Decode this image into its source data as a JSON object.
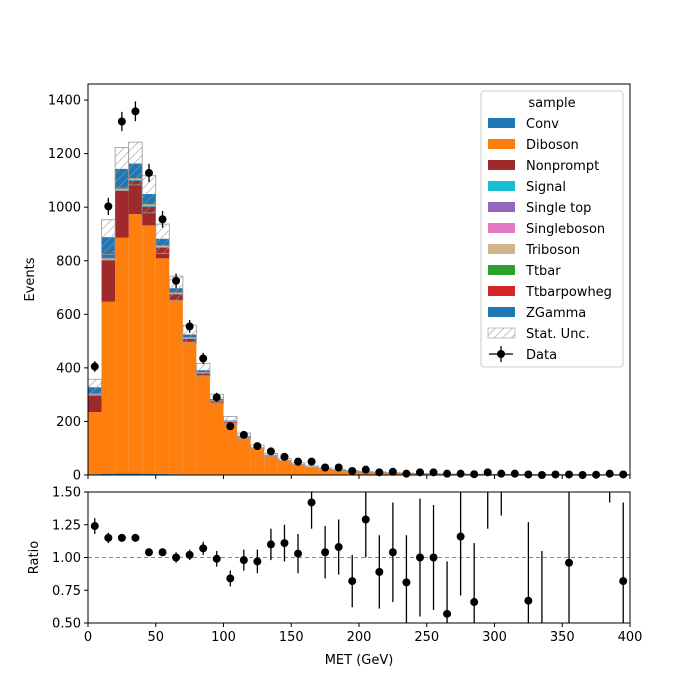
{
  "chart_data": [
    {
      "type": "bar",
      "stacked": true,
      "ylabel": "Events",
      "xlim": [
        0,
        400
      ],
      "ylim": [
        0,
        1460
      ],
      "yticks": [
        0,
        200,
        400,
        600,
        800,
        1000,
        1200,
        1400
      ],
      "bin_edges": [
        0,
        10,
        20,
        30,
        40,
        50,
        60,
        70,
        80,
        90,
        100,
        110,
        120,
        130,
        140,
        150,
        160,
        170,
        180,
        190,
        200,
        210,
        220,
        230,
        240,
        250,
        260,
        270,
        280,
        290,
        300,
        310,
        320,
        330,
        340,
        350,
        360,
        370,
        380,
        390,
        400
      ],
      "legend": {
        "title": "sample",
        "placement": "top-right",
        "entries": [
          "Conv",
          "Diboson",
          "Nonprompt",
          "Signal",
          "Single top",
          "Singleboson",
          "Triboson",
          "Ttbar",
          "Ttbarpowheg",
          "ZGamma",
          "Stat. Unc.",
          "Data"
        ]
      },
      "series": [
        {
          "name": "Conv",
          "color": "#1f77b4",
          "values": [
            3,
            5,
            6,
            6,
            5,
            4,
            3,
            2,
            2,
            1,
            1,
            1,
            0.5,
            0.5,
            0.3,
            0.3,
            0.2,
            0.2,
            0.1,
            0.1,
            0.1,
            0.1,
            0.1,
            0,
            0,
            0,
            0,
            0,
            0,
            0,
            0,
            0,
            0,
            0,
            0,
            0,
            0,
            0,
            0,
            0
          ]
        },
        {
          "name": "Diboson",
          "color": "#ff7f0e",
          "values": [
            232,
            642,
            880,
            968,
            927,
            805,
            650,
            495,
            370,
            270,
            195,
            140,
            100,
            72,
            54,
            40,
            30,
            23,
            18,
            14,
            11,
            9,
            7,
            6,
            5,
            4,
            3,
            3,
            2,
            2,
            2,
            1.5,
            1.2,
            1,
            1,
            0.8,
            0.7,
            0.5,
            0.5,
            0.4
          ]
        },
        {
          "name": "Nonprompt",
          "color": "#9e2a2b",
          "values": [
            65,
            155,
            175,
            125,
            70,
            40,
            22,
            12,
            7,
            4,
            2,
            1,
            0.5,
            0.3,
            0.2,
            0.1,
            0.1,
            0,
            0,
            0,
            0,
            0,
            0,
            0,
            0,
            0,
            0,
            0,
            0,
            0,
            0,
            0,
            0,
            0,
            0,
            0,
            0,
            0,
            0,
            0
          ]
        },
        {
          "name": "Signal",
          "color": "#17becf",
          "values": [
            1,
            2,
            3,
            3,
            3,
            2,
            2,
            1,
            1,
            1,
            0.5,
            0.5,
            0.3,
            0.2,
            0.2,
            0.1,
            0.1,
            0.1,
            0.1,
            0,
            0,
            0,
            0,
            0,
            0,
            0,
            0,
            0,
            0,
            0,
            0,
            0,
            0,
            0,
            0,
            0,
            0,
            0,
            0,
            0
          ]
        },
        {
          "name": "Single top",
          "color": "#9467bd",
          "values": [
            0.5,
            1,
            1,
            1,
            1,
            1,
            0.5,
            0.5,
            0.5,
            0.3,
            0.2,
            0.2,
            0.1,
            0.1,
            0.1,
            0.1,
            0,
            0,
            0,
            0,
            0,
            0,
            0,
            0,
            0,
            0,
            0,
            0,
            0,
            0,
            0,
            0,
            0,
            0,
            0,
            0,
            0,
            0,
            0,
            0
          ]
        },
        {
          "name": "Singleboson",
          "color": "#e377c2",
          "values": [
            0.5,
            1,
            1,
            1,
            1,
            0.5,
            0.5,
            0.5,
            0.3,
            0.2,
            0.1,
            0.1,
            0.1,
            0,
            0,
            0,
            0,
            0,
            0,
            0,
            0,
            0,
            0,
            0,
            0,
            0,
            0,
            0,
            0,
            0,
            0,
            0,
            0,
            0,
            0,
            0,
            0,
            0,
            0,
            0
          ]
        },
        {
          "name": "Triboson",
          "color": "#d2b48c",
          "values": [
            1,
            2,
            3,
            3,
            3,
            3,
            2,
            2,
            2,
            1,
            1,
            1,
            0.5,
            0.5,
            0.5,
            0.3,
            0.3,
            0.2,
            0.2,
            0.1,
            0.1,
            0.1,
            0.1,
            0.1,
            0,
            0,
            0,
            0,
            0,
            0,
            0,
            0,
            0,
            0,
            0,
            0,
            0,
            0,
            0,
            0
          ]
        },
        {
          "name": "Ttbar",
          "color": "#2ca02c",
          "values": [
            0.5,
            1,
            1,
            1,
            1,
            0.5,
            0.5,
            0.5,
            0.3,
            0.2,
            0.1,
            0.1,
            0,
            0,
            0,
            0,
            0,
            0,
            0,
            0,
            0,
            0,
            0,
            0,
            0,
            0,
            0,
            0,
            0,
            0,
            0,
            0,
            0,
            0,
            0,
            0,
            0,
            0,
            0,
            0
          ]
        },
        {
          "name": "Ttbarpowheg",
          "color": "#d62728",
          "values": [
            1,
            2,
            3,
            3,
            3,
            2,
            2,
            1,
            1,
            1,
            0.5,
            0.5,
            0.3,
            0.2,
            0.2,
            0.1,
            0.1,
            0,
            0,
            0,
            0,
            0,
            0,
            0,
            0,
            0,
            0,
            0,
            0,
            0,
            0,
            0,
            0,
            0,
            0,
            0,
            0,
            0,
            0,
            0
          ]
        },
        {
          "name": "ZGamma",
          "color": "#1f77b4",
          "values": [
            23,
            77,
            70,
            52,
            35,
            24,
            15,
            10,
            7,
            5,
            3,
            2,
            1.5,
            1,
            0.8,
            0.5,
            0.4,
            0.3,
            0.2,
            0.2,
            0.1,
            0.1,
            0.1,
            0.1,
            0,
            0,
            0,
            0,
            0,
            0,
            0,
            0,
            0,
            0,
            0,
            0,
            0,
            0,
            0,
            0
          ]
        }
      ],
      "stat_unc": [
        30,
        65,
        80,
        80,
        70,
        55,
        45,
        35,
        25,
        18,
        15,
        10,
        8,
        6,
        5,
        4,
        3,
        3,
        2,
        2,
        2,
        2,
        1.5,
        1.5,
        1,
        1,
        1,
        1,
        1,
        1,
        1,
        1,
        1,
        1,
        1,
        1,
        1,
        1,
        1,
        1
      ],
      "data": {
        "name": "Data",
        "x": [
          5,
          15,
          25,
          35,
          45,
          55,
          65,
          75,
          85,
          95,
          105,
          115,
          125,
          135,
          145,
          155,
          165,
          175,
          185,
          195,
          205,
          215,
          225,
          235,
          245,
          255,
          265,
          275,
          285,
          295,
          305,
          315,
          325,
          335,
          345,
          355,
          365,
          375,
          385,
          395
        ],
        "y": [
          405,
          1003,
          1320,
          1358,
          1128,
          955,
          725,
          555,
          435,
          290,
          182,
          150,
          108,
          88,
          68,
          50,
          50,
          28,
          28,
          15,
          20,
          10,
          12,
          5,
          10,
          10,
          5,
          5,
          3,
          10,
          5,
          5,
          2,
          0,
          2,
          2,
          0,
          1,
          5,
          2
        ],
        "yerr": [
          20,
          32,
          36,
          37,
          34,
          31,
          27,
          24,
          21,
          17,
          13,
          12,
          10,
          9,
          8,
          7,
          7,
          5,
          5,
          4,
          4,
          3,
          3,
          2,
          3,
          3,
          2,
          2,
          2,
          3,
          2,
          2,
          1,
          0,
          1,
          1,
          0,
          1,
          2,
          1
        ]
      }
    },
    {
      "type": "scatter",
      "xlabel": "MET (GeV)",
      "ylabel": "Ratio",
      "xlim": [
        0,
        400
      ],
      "ylim": [
        0.5,
        1.5
      ],
      "yticks": [
        0.5,
        0.75,
        1.0,
        1.25,
        1.5
      ],
      "yticklabels": [
        "0.50",
        "0.75",
        "1.00",
        "1.25",
        "1.50"
      ],
      "xticks": [
        0,
        50,
        100,
        150,
        200,
        250,
        300,
        350,
        400
      ],
      "reference_line": 1.0,
      "points": [
        {
          "x": 5,
          "y": 1.24,
          "err": 0.06
        },
        {
          "x": 15,
          "y": 1.15,
          "err": 0.04
        },
        {
          "x": 25,
          "y": 1.15,
          "err": 0.03
        },
        {
          "x": 35,
          "y": 1.15,
          "err": 0.03
        },
        {
          "x": 45,
          "y": 1.04,
          "err": 0.03
        },
        {
          "x": 55,
          "y": 1.04,
          "err": 0.03
        },
        {
          "x": 65,
          "y": 1.0,
          "err": 0.04
        },
        {
          "x": 75,
          "y": 1.02,
          "err": 0.04
        },
        {
          "x": 85,
          "y": 1.07,
          "err": 0.05
        },
        {
          "x": 95,
          "y": 0.99,
          "err": 0.06
        },
        {
          "x": 105,
          "y": 0.84,
          "err": 0.06
        },
        {
          "x": 115,
          "y": 0.98,
          "err": 0.08
        },
        {
          "x": 125,
          "y": 0.97,
          "err": 0.09
        },
        {
          "x": 135,
          "y": 1.1,
          "err": 0.12
        },
        {
          "x": 145,
          "y": 1.11,
          "err": 0.14
        },
        {
          "x": 155,
          "y": 1.03,
          "err": 0.15
        },
        {
          "x": 165,
          "y": 1.42,
          "err": 0.2
        },
        {
          "x": 175,
          "y": 1.04,
          "err": 0.2
        },
        {
          "x": 185,
          "y": 1.08,
          "err": 0.21
        },
        {
          "x": 195,
          "y": 0.82,
          "err": 0.2
        },
        {
          "x": 205,
          "y": 1.29,
          "err": 0.29
        },
        {
          "x": 215,
          "y": 0.89,
          "err": 0.28
        },
        {
          "x": 225,
          "y": 1.04,
          "err": 0.38
        },
        {
          "x": 235,
          "y": 0.81,
          "err": 0.36
        },
        {
          "x": 245,
          "y": 1.0,
          "err": 0.45
        },
        {
          "x": 255,
          "y": 1.0,
          "err": 0.4
        },
        {
          "x": 265,
          "y": 0.57,
          "err": 0.4
        },
        {
          "x": 275,
          "y": 1.16,
          "err": 0.45
        },
        {
          "x": 285,
          "y": 0.66,
          "err": 0.45
        },
        {
          "x": 295,
          "y": 1.5,
          "err": 0.28,
          "offscale": true
        },
        {
          "x": 305,
          "y": 1.5,
          "err": 0.18,
          "offscale": true
        },
        {
          "x": 325,
          "y": 0.67,
          "err": 0.6
        },
        {
          "x": 335,
          "y": 0.5,
          "err": 0.55,
          "offscale": true
        },
        {
          "x": 355,
          "y": 0.96,
          "err": 0.6
        },
        {
          "x": 385,
          "y": 1.5,
          "err": 0.08,
          "offscale": true
        },
        {
          "x": 395,
          "y": 0.82,
          "err": 0.6
        }
      ]
    }
  ]
}
